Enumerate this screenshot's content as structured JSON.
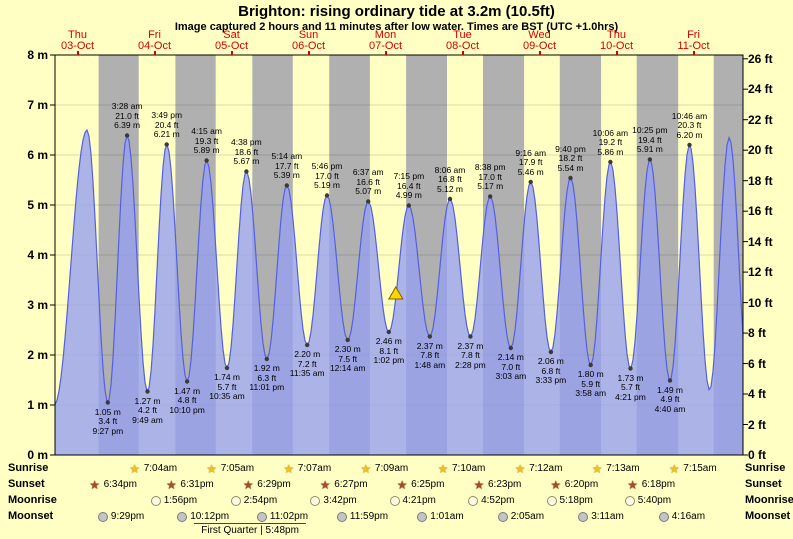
{
  "title": "Brighton: rising  ordinary tide at 3.2m (10.5ft)",
  "subtitle": "Image captured 2 hours and 11 minutes after low water. Times are BST (UTC +1.0hrs)",
  "colors": {
    "background": "#ffffc4",
    "day_band": "#ffffc4",
    "night_band": "#b0b0b0",
    "tide_fill": "#96a0f0",
    "tide_stroke": "#5560dd",
    "day_label": "#d40000",
    "marker_fill": "#ffd700",
    "marker_stroke": "#7a6000"
  },
  "days": [
    {
      "name": "Thu",
      "date": "03-Oct"
    },
    {
      "name": "Fri",
      "date": "04-Oct"
    },
    {
      "name": "Sat",
      "date": "05-Oct"
    },
    {
      "name": "Sun",
      "date": "06-Oct"
    },
    {
      "name": "Mon",
      "date": "07-Oct"
    },
    {
      "name": "Tue",
      "date": "08-Oct"
    },
    {
      "name": "Wed",
      "date": "09-Oct"
    },
    {
      "name": "Thu",
      "date": "10-Oct"
    },
    {
      "name": "Fri",
      "date": "11-Oct"
    }
  ],
  "y_axis": {
    "left": [
      "8 m",
      "7 m",
      "6 m",
      "5 m",
      "4 m",
      "3 m",
      "2 m",
      "1 m",
      "0 m"
    ],
    "right": [
      "26 ft",
      "24 ft",
      "22 ft",
      "20 ft",
      "18 ft",
      "16 ft",
      "14 ft",
      "12 ft",
      "10 ft",
      "8 ft",
      "6 ft",
      "4 ft",
      "2 ft",
      "0 ft"
    ]
  },
  "chart_data": {
    "type": "area",
    "ylim_m": [
      0,
      8
    ],
    "ylim_ft": [
      0,
      26
    ],
    "x_range_days": [
      "Thu 03-Oct",
      "Fri 11-Oct"
    ],
    "tide_events": [
      {
        "day": 0,
        "kind": "low",
        "time": "9:27 pm",
        "m": 1.05,
        "ft": 3.4
      },
      {
        "day": 1,
        "kind": "high",
        "time": "3:28 am",
        "m": 6.39,
        "ft": 21.0
      },
      {
        "day": 1,
        "kind": "low",
        "time": "9:49 am",
        "m": 1.27,
        "ft": 4.2
      },
      {
        "day": 1,
        "kind": "high",
        "time": "3:49 pm",
        "m": 6.21,
        "ft": 20.4
      },
      {
        "day": 1,
        "kind": "low",
        "time": "10:10 pm",
        "m": 1.47,
        "ft": 4.8
      },
      {
        "day": 2,
        "kind": "high",
        "time": "4:15 am",
        "m": 5.89,
        "ft": 19.3
      },
      {
        "day": 2,
        "kind": "low",
        "time": "10:35 am",
        "m": 1.74,
        "ft": 5.7
      },
      {
        "day": 2,
        "kind": "high",
        "time": "4:38 pm",
        "m": 5.67,
        "ft": 18.6
      },
      {
        "day": 2,
        "kind": "low",
        "time": "11:01 pm",
        "m": 1.92,
        "ft": 6.3
      },
      {
        "day": 3,
        "kind": "high",
        "time": "5:14 am",
        "m": 5.39,
        "ft": 17.7
      },
      {
        "day": 3,
        "kind": "low",
        "time": "11:35 am",
        "m": 2.2,
        "ft": 7.2
      },
      {
        "day": 3,
        "kind": "high",
        "time": "5:46 pm",
        "m": 5.19,
        "ft": 17.0
      },
      {
        "day": 4,
        "kind": "low",
        "time": "12:14 am",
        "m": 2.3,
        "ft": 7.5
      },
      {
        "day": 4,
        "kind": "high",
        "time": "6:37 am",
        "m": 5.07,
        "ft": 16.6
      },
      {
        "day": 4,
        "kind": "low",
        "time": "1:02 pm",
        "m": 2.46,
        "ft": 8.1
      },
      {
        "day": 4,
        "kind": "high",
        "time": "7:15 pm",
        "m": 4.99,
        "ft": 16.4
      },
      {
        "day": 5,
        "kind": "low",
        "time": "1:48 am",
        "m": 2.37,
        "ft": 7.8
      },
      {
        "day": 5,
        "kind": "high",
        "time": "8:06 am",
        "m": 5.12,
        "ft": 16.8
      },
      {
        "day": 5,
        "kind": "low",
        "time": "2:28 pm",
        "m": 2.37,
        "ft": 7.8
      },
      {
        "day": 5,
        "kind": "high",
        "time": "8:38 pm",
        "m": 5.17,
        "ft": 17.0
      },
      {
        "day": 6,
        "kind": "low",
        "time": "3:03 am",
        "m": 2.14,
        "ft": 7.0
      },
      {
        "day": 6,
        "kind": "high",
        "time": "9:16 am",
        "m": 5.46,
        "ft": 17.9
      },
      {
        "day": 6,
        "kind": "low",
        "time": "3:33 pm",
        "m": 2.06,
        "ft": 6.8
      },
      {
        "day": 6,
        "kind": "high",
        "time": "9:40 pm",
        "m": 5.54,
        "ft": 18.2
      },
      {
        "day": 7,
        "kind": "low",
        "time": "3:58 am",
        "m": 1.8,
        "ft": 5.9
      },
      {
        "day": 7,
        "kind": "high",
        "time": "10:06 am",
        "m": 5.86,
        "ft": 19.2
      },
      {
        "day": 7,
        "kind": "low",
        "time": "4:21 pm",
        "m": 1.73,
        "ft": 5.7
      },
      {
        "day": 7,
        "kind": "high",
        "time": "10:25 pm",
        "m": 5.91,
        "ft": 19.4
      },
      {
        "day": 8,
        "kind": "low",
        "time": "4:40 am",
        "m": 1.49,
        "ft": 4.9
      },
      {
        "day": 8,
        "kind": "high",
        "time": "10:46 am",
        "m": 6.2,
        "ft": 20.3
      }
    ],
    "curve_edge_estimates": [
      {
        "day": 0,
        "kind": "low",
        "time": "4:45 am",
        "m": 1.0
      },
      {
        "day": 0,
        "kind": "high",
        "time": "2:58 pm",
        "m": 6.5
      },
      {
        "day": 8,
        "kind": "low",
        "time": "5:00 pm",
        "m": 1.3
      },
      {
        "day": 8,
        "kind": "high",
        "time": "11:08 pm",
        "m": 6.35
      },
      {
        "day": 9,
        "kind": "low",
        "time": "5:15 am",
        "m": 1.35
      }
    ],
    "current_marker": {
      "m": 3.2,
      "day": 4,
      "time": "3:13 pm"
    }
  },
  "astro": {
    "rows": [
      {
        "label": "Sunrise",
        "icon": "sunrise-star",
        "entries": [
          {
            "day": 1,
            "time": "7:04am"
          },
          {
            "day": 2,
            "time": "7:05am"
          },
          {
            "day": 3,
            "time": "7:07am"
          },
          {
            "day": 4,
            "time": "7:09am"
          },
          {
            "day": 5,
            "time": "7:10am"
          },
          {
            "day": 6,
            "time": "7:12am"
          },
          {
            "day": 7,
            "time": "7:13am"
          },
          {
            "day": 8,
            "time": "7:15am"
          }
        ]
      },
      {
        "label": "Sunset",
        "icon": "sunset-star",
        "entries": [
          {
            "day": 0,
            "time": "6:34pm"
          },
          {
            "day": 1,
            "time": "6:31pm"
          },
          {
            "day": 2,
            "time": "6:29pm"
          },
          {
            "day": 3,
            "time": "6:27pm"
          },
          {
            "day": 4,
            "time": "6:25pm"
          },
          {
            "day": 5,
            "time": "6:23pm"
          },
          {
            "day": 6,
            "time": "6:20pm"
          },
          {
            "day": 7,
            "time": "6:18pm"
          }
        ]
      },
      {
        "label": "Moonrise",
        "icon": "moonrise-moon",
        "entries": [
          {
            "day": 1,
            "time": "1:56pm"
          },
          {
            "day": 2,
            "time": "2:54pm"
          },
          {
            "day": 3,
            "time": "3:42pm"
          },
          {
            "day": 4,
            "time": "4:21pm"
          },
          {
            "day": 5,
            "time": "4:52pm"
          },
          {
            "day": 6,
            "time": "5:18pm"
          },
          {
            "day": 7,
            "time": "5:40pm"
          }
        ]
      },
      {
        "label": "Moonset",
        "icon": "moonset-moon",
        "entries": [
          {
            "day": 0,
            "time": "9:29pm"
          },
          {
            "day": 1,
            "time": "10:12pm"
          },
          {
            "day": 2,
            "time": "11:02pm"
          },
          {
            "day": 3,
            "time": "11:59pm"
          },
          {
            "day": 5,
            "time": "1:01am"
          },
          {
            "day": 6,
            "time": "2:05am"
          },
          {
            "day": 7,
            "time": "3:11am"
          },
          {
            "day": 8,
            "time": "4:16am"
          }
        ]
      }
    ],
    "phase_note": "First Quarter | 5:48pm",
    "phase_day": 2,
    "phase_time": "5:48pm"
  }
}
